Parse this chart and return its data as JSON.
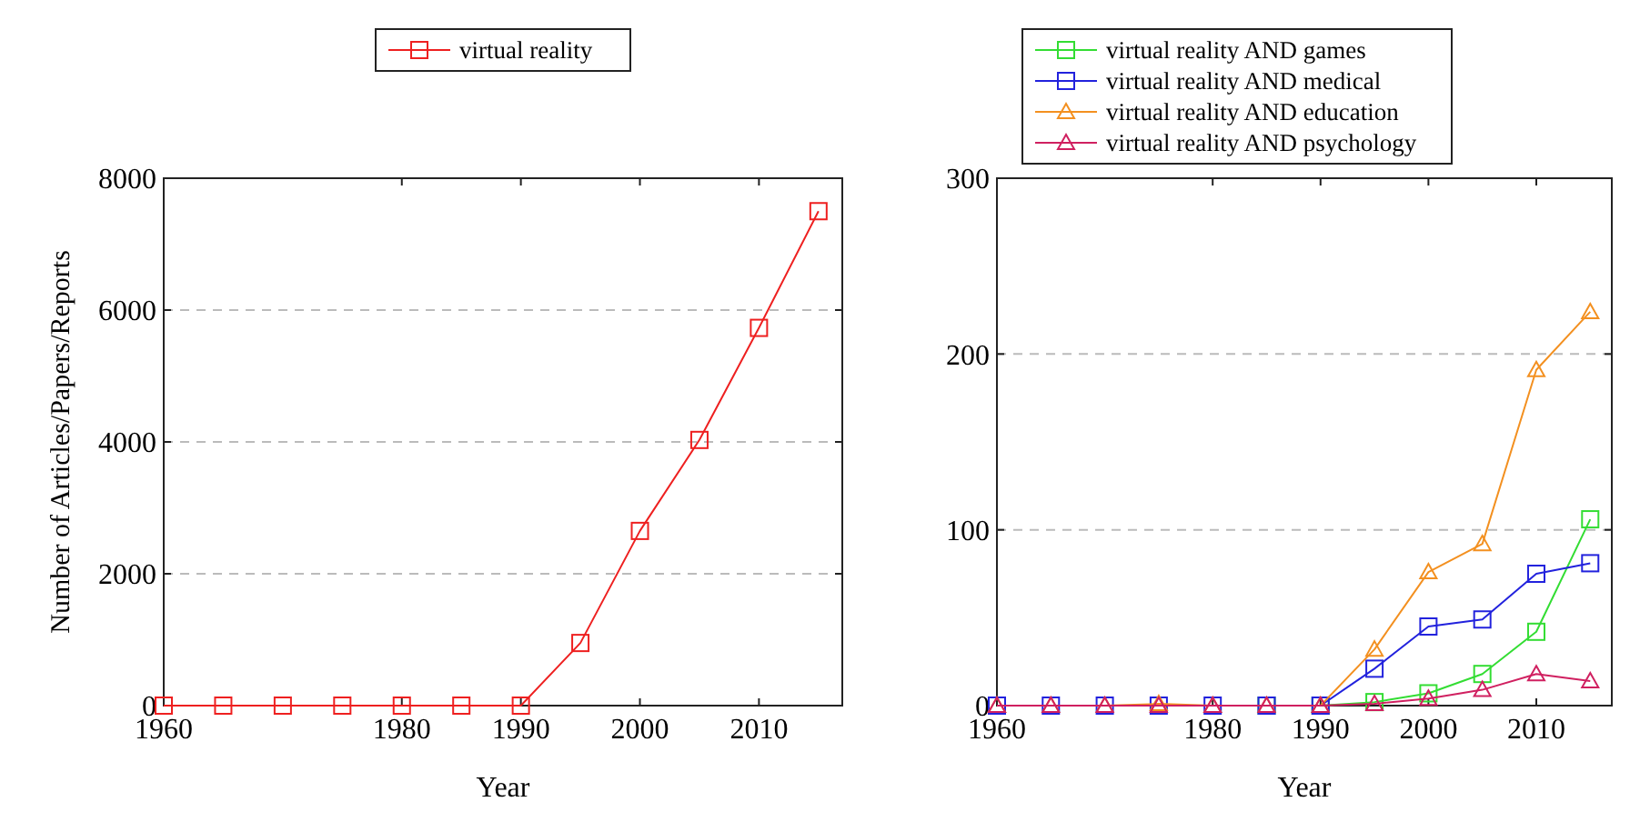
{
  "chart_data": [
    {
      "type": "line",
      "xlabel": "Year",
      "ylabel": "Number of Articles/Papers/Reports",
      "x": [
        1960,
        1965,
        1970,
        1975,
        1980,
        1985,
        1990,
        1995,
        2000,
        2005,
        2010,
        2015
      ],
      "xlim": [
        1960,
        2017
      ],
      "xticks": [
        1960,
        1980,
        1990,
        2000,
        2010
      ],
      "ylim": [
        0,
        8000
      ],
      "yticks": [
        0,
        2000,
        4000,
        6000,
        8000
      ],
      "grid": "y",
      "legend": "top",
      "marker": "square",
      "series": [
        {
          "name": "virtual reality",
          "color": "#ee2020",
          "values": [
            0,
            0,
            0,
            0,
            0,
            0,
            0,
            950,
            2650,
            4030,
            5730,
            7500
          ]
        }
      ]
    },
    {
      "type": "line",
      "xlabel": "Year",
      "x": [
        1960,
        1965,
        1970,
        1975,
        1980,
        1985,
        1990,
        1995,
        2000,
        2005,
        2010,
        2015
      ],
      "xlim": [
        1960,
        2017
      ],
      "xticks": [
        1960,
        1980,
        1990,
        2000,
        2010
      ],
      "ylim": [
        0,
        300
      ],
      "yticks": [
        0,
        100,
        200,
        300
      ],
      "grid": "y",
      "legend": "top left",
      "series": [
        {
          "name": "virtual reality AND games",
          "color": "#33dd33",
          "marker": "square",
          "values": [
            null,
            null,
            null,
            null,
            null,
            0,
            0,
            2,
            7,
            18,
            42,
            106
          ]
        },
        {
          "name": "virtual reality AND medical",
          "color": "#2222dd",
          "marker": "square",
          "values": [
            0,
            0,
            0,
            0,
            0,
            0,
            0,
            21,
            45,
            49,
            75,
            81
          ]
        },
        {
          "name": "virtual reality AND education",
          "color": "#f39020",
          "marker": "triangle",
          "values": [
            0,
            0,
            0,
            1,
            0,
            0,
            0,
            32,
            76,
            92,
            191,
            224
          ]
        },
        {
          "name": "virtual reality AND psychology",
          "color": "#d02060",
          "marker": "triangle",
          "values": [
            0,
            0,
            0,
            0,
            0,
            0,
            0,
            1,
            4,
            9,
            18,
            14
          ]
        }
      ]
    }
  ]
}
